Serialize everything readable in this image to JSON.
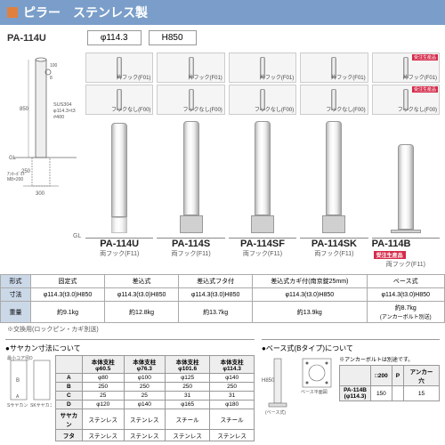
{
  "header": {
    "title": "ピラー　ステンレス製"
  },
  "model_label": "PA-114U",
  "specs": {
    "diameter": "φ114.3",
    "height": "H850"
  },
  "drawing": {
    "material": "SUS304\nφ114.3×t3\n#400",
    "anchor": "アンカーボルト\nM8×200",
    "gl": "GL",
    "dims": {
      "top_gap": "100",
      "h_mid": "850",
      "below": "250",
      "width": "300",
      "fl": "8"
    }
  },
  "hook_variants": {
    "with": "片フック(F01)",
    "none": "フックなし(F00)"
  },
  "badge": "受注生産品",
  "products": [
    {
      "code": "PA-114U",
      "sub": "両フック(F11)",
      "type": "固定式",
      "dim": "φ114.3(t3.0)H850",
      "weight": "約9.1kg",
      "note": "※交換用(ロックピン・カギ別送)",
      "badge": false
    },
    {
      "code": "PA-114S",
      "sub": "両フック(F11)",
      "type": "差込式",
      "dim": "φ114.3(t3.0)H850",
      "weight": "約12.8kg",
      "note": "",
      "badge": false
    },
    {
      "code": "PA-114SF",
      "sub": "両フック(F11)",
      "type": "差込式フタ付",
      "dim": "φ114.3(t3.0)H850",
      "weight": "約13.7kg",
      "note": "",
      "badge": false
    },
    {
      "code": "PA-114SK",
      "sub": "両フック(F11)",
      "type": "差込式カギ付(南京錠25mm)",
      "dim": "φ114.3(t3.0)H850",
      "weight": "約13.9kg",
      "note": "",
      "badge": false
    },
    {
      "code": "PA-114B",
      "sub": "両フック(F11)",
      "type": "ベース式",
      "dim": "φ114.3(t3.0)H850",
      "weight": "約8.7kg",
      "note": "(アンカーボルト別送)",
      "badge": true
    }
  ],
  "row_labels": {
    "type": "形式",
    "dim": "寸法",
    "weight": "重量"
  },
  "sayakan": {
    "title": "●サヤカン寸法について",
    "core": "最小コア径D",
    "headers": [
      "",
      "本体支柱φ60.5",
      "本体支柱φ76.3",
      "本体支柱φ101.6",
      "本体支柱φ114.3"
    ],
    "rows": [
      [
        "A",
        "φ80",
        "φ100",
        "φ125",
        "φ140"
      ],
      [
        "B",
        "250",
        "250",
        "250",
        "250"
      ],
      [
        "C",
        "25",
        "25",
        "31",
        "31"
      ],
      [
        "D",
        "φ120",
        "φ140",
        "φ165",
        "φ180"
      ],
      [
        "サヤカン",
        "ステンレス",
        "ステンレス",
        "スチール",
        "スチール"
      ],
      [
        "フタ",
        "ステンレス",
        "ステンレス",
        "ステンレス",
        "ステンレス"
      ]
    ],
    "foot": [
      "Sサヤカン",
      "SKサヤカン"
    ]
  },
  "base": {
    "title": "●ベース式(Bタイプ)について",
    "h": "H850",
    "plan": "ベース平面図",
    "note": "※アンカーボルトは別途です。",
    "headers": [
      "",
      "□200",
      "P",
      "アンカー穴"
    ],
    "rows": [
      [
        "PA-114B\n(φ114.3)",
        "150",
        "",
        "15"
      ]
    ],
    "foot": "(ベース式)"
  },
  "colors": {
    "header_bg": "#7a9ec9",
    "header_sq": "#e08040",
    "badge": "#d52b4a",
    "th_bg": "#cbd8e8"
  }
}
